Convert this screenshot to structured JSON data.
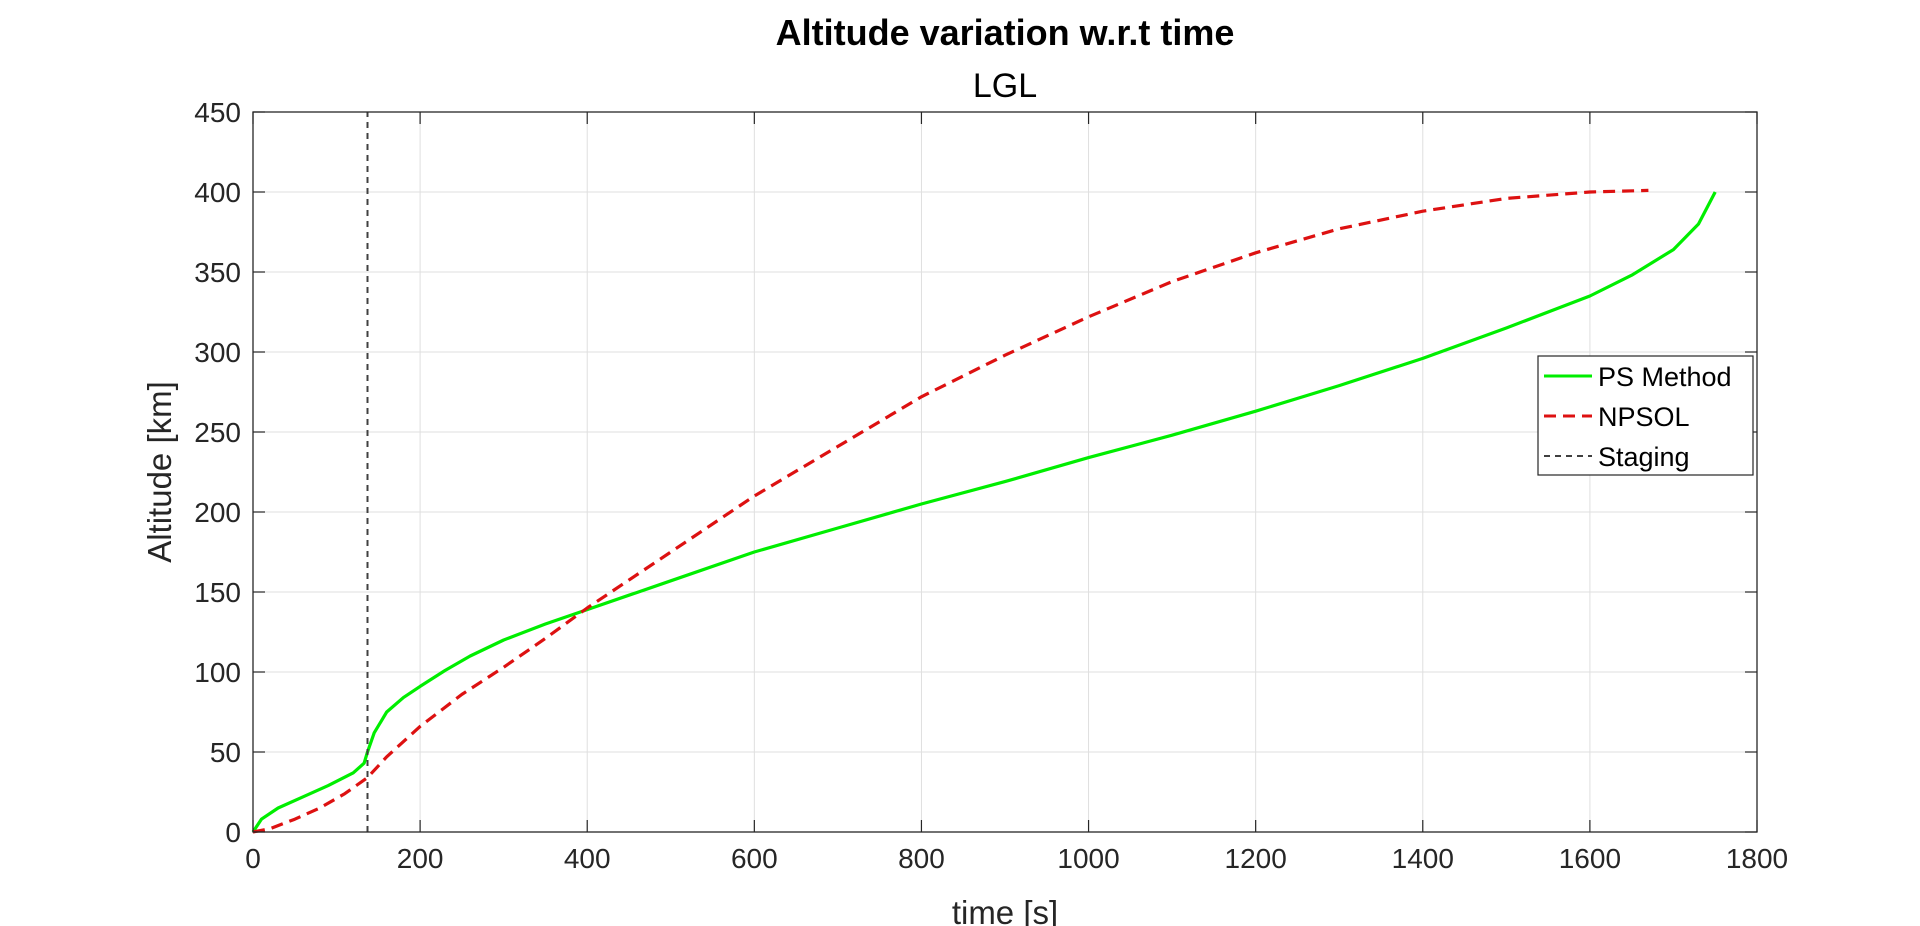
{
  "chart_data": {
    "type": "line",
    "title": "Altitude variation w.r.t time",
    "subtitle": "LGL",
    "xlabel": "time [s]",
    "ylabel": "Altitude [km]",
    "xlim": [
      0,
      1800
    ],
    "ylim": [
      0,
      450
    ],
    "xticks": [
      0,
      200,
      400,
      600,
      800,
      1000,
      1200,
      1400,
      1600,
      1800
    ],
    "yticks": [
      0,
      50,
      100,
      150,
      200,
      250,
      300,
      350,
      400,
      450
    ],
    "grid": true,
    "legend_position": "right",
    "series": [
      {
        "name": "PS Method",
        "color": "#00ee00",
        "style": "solid",
        "x": [
          0,
          10,
          30,
          60,
          90,
          120,
          133,
          137,
          145,
          160,
          180,
          200,
          230,
          260,
          300,
          350,
          400,
          450,
          500,
          600,
          700,
          800,
          900,
          1000,
          1100,
          1200,
          1300,
          1400,
          1500,
          1600,
          1650,
          1700,
          1730,
          1750
        ],
        "y": [
          0,
          8,
          15,
          22,
          29,
          37,
          43,
          50,
          62,
          75,
          84,
          91,
          101,
          110,
          120,
          130,
          139,
          148,
          157,
          175,
          190,
          205,
          219,
          234,
          248,
          263,
          279,
          296,
          315,
          335,
          348,
          364,
          380,
          400
        ]
      },
      {
        "name": "NPSOL",
        "color": "#dd1111",
        "style": "dashed",
        "x": [
          0,
          20,
          50,
          80,
          110,
          137,
          160,
          200,
          250,
          300,
          350,
          400,
          500,
          600,
          700,
          800,
          900,
          1000,
          1100,
          1200,
          1300,
          1400,
          1500,
          1600,
          1670
        ],
        "y": [
          0,
          2,
          8,
          15,
          24,
          34,
          47,
          66,
          86,
          103,
          121,
          140,
          175,
          210,
          241,
          272,
          298,
          322,
          344,
          362,
          377,
          388,
          396,
          400,
          401
        ]
      },
      {
        "name": "Staging",
        "color": "#404040",
        "style": "dotted",
        "x": [
          137,
          137
        ],
        "y": [
          0,
          450
        ]
      }
    ]
  }
}
